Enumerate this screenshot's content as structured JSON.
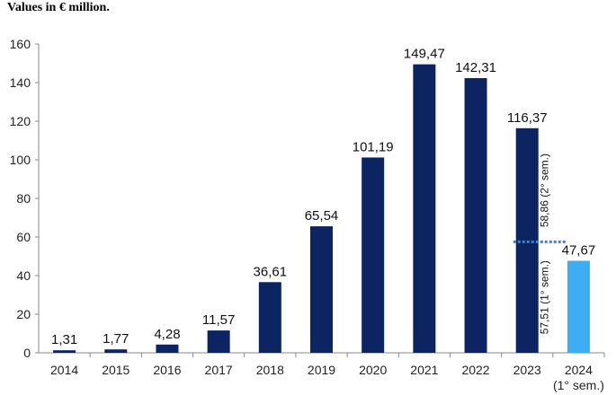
{
  "chart_data": {
    "type": "bar",
    "title": "Values in € million.",
    "xlabel": "",
    "ylabel": "",
    "ylim": [
      0,
      160
    ],
    "yticks": [
      0,
      20,
      40,
      60,
      80,
      100,
      120,
      140,
      160
    ],
    "categories": [
      "2014",
      "2015",
      "2016",
      "2017",
      "2018",
      "2019",
      "2020",
      "2021",
      "2022",
      "2023",
      "2024"
    ],
    "category_sublabels": [
      "",
      "",
      "",
      "",
      "",
      "",
      "",
      "",
      "",
      "",
      "(1° sem.)"
    ],
    "values": [
      1.31,
      1.77,
      4.28,
      11.57,
      36.61,
      65.54,
      101.19,
      149.47,
      142.31,
      116.37,
      47.67
    ],
    "value_labels": [
      "1,31",
      "1,77",
      "4,28",
      "11,57",
      "36,61",
      "65,54",
      "101,19",
      "149,47",
      "142,31",
      "116,37",
      "47,67"
    ],
    "colors": {
      "bar": "#0c2461",
      "highlight": "#3daef2",
      "split_line": "#4a7fc6",
      "axis": "#888888"
    },
    "highlight_index": 10,
    "annotation": {
      "category": "2023",
      "split_value": 57.51,
      "first_half_label": "57,51 (1° sem.)",
      "second_half_label": "58,86 (2° sem.)"
    }
  }
}
